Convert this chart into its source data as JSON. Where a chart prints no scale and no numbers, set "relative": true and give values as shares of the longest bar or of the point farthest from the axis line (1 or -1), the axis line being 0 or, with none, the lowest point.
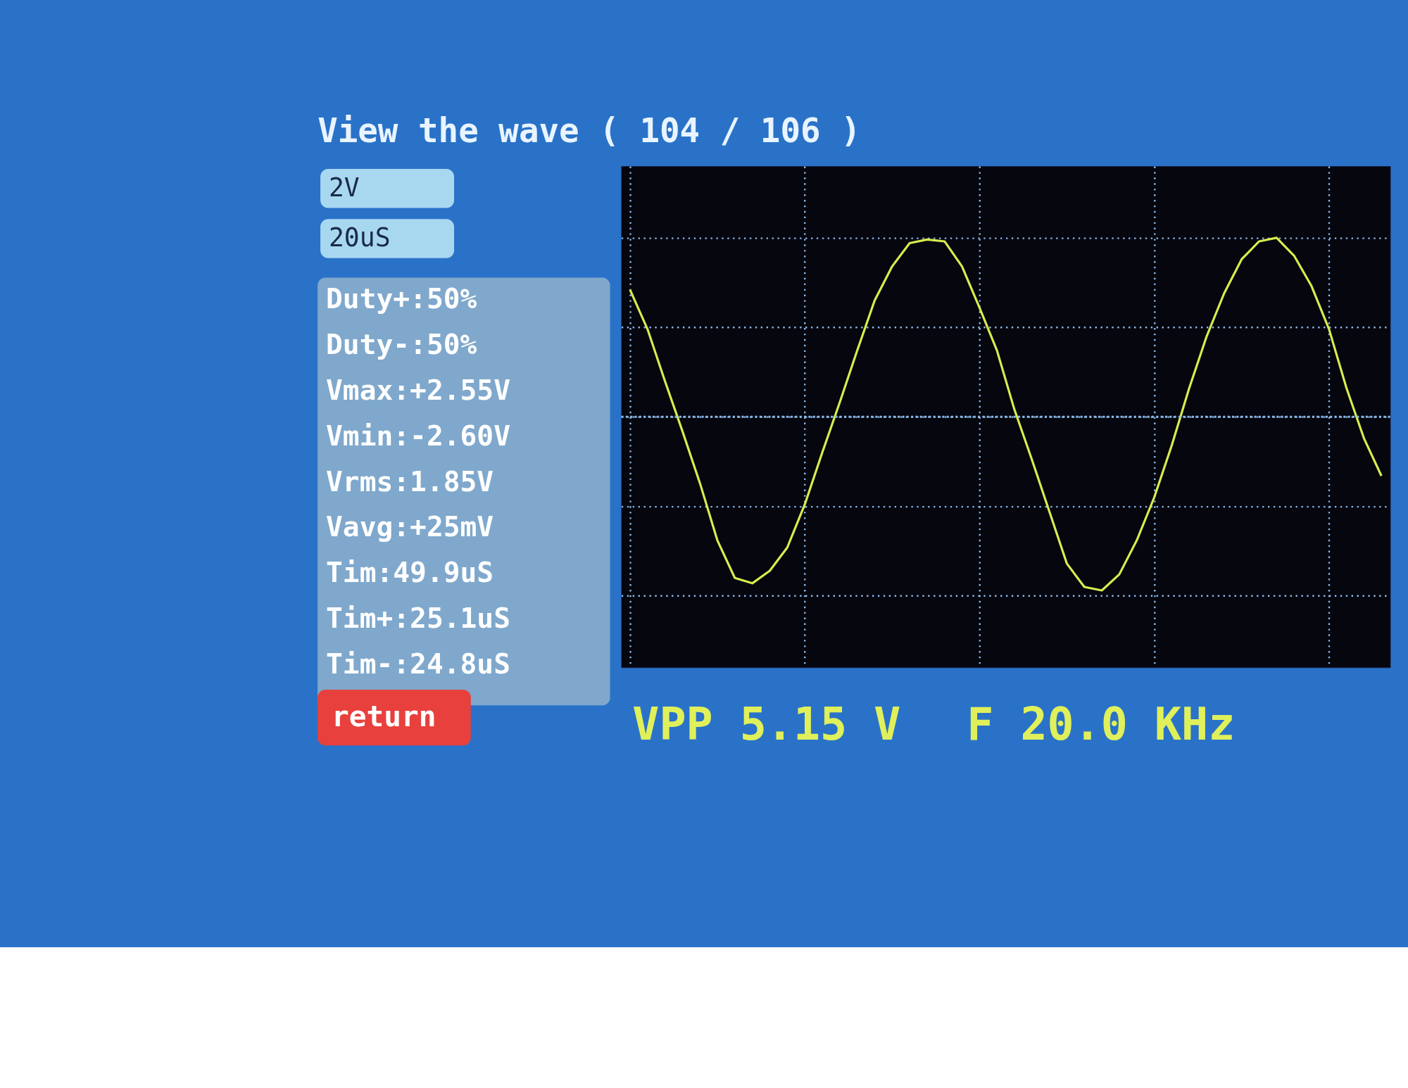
{
  "chart_data": {
    "type": "line",
    "title": "View the wave ( 104 / 106 )",
    "relative": true,
    "grid": true,
    "categories": [
      null,
      null,
      null,
      null,
      null,
      null,
      null,
      null,
      null,
      null,
      null,
      null,
      null,
      null,
      null,
      null,
      null,
      null,
      null,
      null,
      null,
      null,
      null,
      null,
      null,
      null,
      null,
      null,
      null,
      null,
      null,
      null,
      null,
      null,
      null,
      null,
      null,
      null,
      null,
      null,
      null,
      null,
      null,
      null
    ],
    "series": [
      {
        "color": "#d8ec4c",
        "values": [
          0.71,
          0.49,
          0.2,
          -0.08,
          -0.37,
          -0.69,
          -0.9,
          -0.93,
          -0.86,
          -0.73,
          -0.49,
          -0.2,
          0.08,
          0.37,
          0.65,
          0.84,
          0.97,
          0.99,
          0.98,
          0.84,
          0.61,
          0.37,
          0.04,
          -0.24,
          -0.53,
          -0.82,
          -0.95,
          -0.97,
          -0.88,
          -0.69,
          -0.45,
          -0.16,
          0.16,
          0.45,
          0.69,
          0.88,
          0.98,
          1.0,
          0.9,
          0.73,
          0.49,
          0.16,
          -0.12,
          -0.33
        ]
      }
    ],
    "ref_lines": [
      {
        "axis": "y",
        "value": 0,
        "color": "#8ab8e8",
        "line_style": "dashed"
      }
    ],
    "annotations": [
      "2V",
      "20uS",
      "Duty+:50%",
      "Duty-:50%",
      "Vmax:+2.55V",
      "Vmin:-2.60V",
      "Vrms:1.85V",
      "Vavg:+25mV",
      "Tim:49.9uS",
      "Tim+:25.1uS",
      "Tim-:24.8uS",
      "return",
      "VPP 5.15 V",
      "F 20.0 KHz"
    ]
  }
}
